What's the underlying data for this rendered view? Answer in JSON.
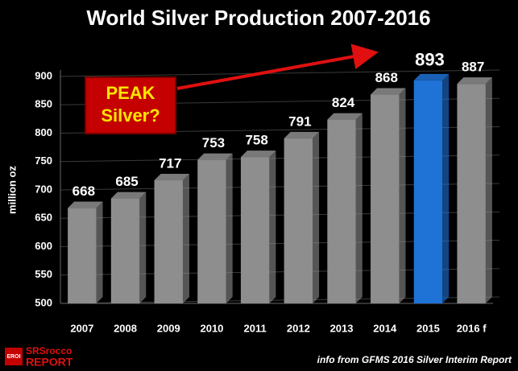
{
  "chart_data": {
    "type": "bar",
    "title": "World Silver Production 2007-2016",
    "categories": [
      "2007",
      "2008",
      "2009",
      "2010",
      "2011",
      "2012",
      "2013",
      "2014",
      "2015",
      "2016 f"
    ],
    "values": [
      668,
      685,
      717,
      753,
      758,
      791,
      824,
      868,
      893,
      887
    ],
    "colors": [
      "#8e8e8e",
      "#8e8e8e",
      "#8e8e8e",
      "#8e8e8e",
      "#8e8e8e",
      "#8e8e8e",
      "#8e8e8e",
      "#8e8e8e",
      "#1f72d6",
      "#8e8e8e"
    ],
    "ylabel": "million oz",
    "ylim": [
      500,
      900
    ],
    "yticks": [
      500,
      550,
      600,
      650,
      700,
      750,
      800,
      850,
      900
    ],
    "grid": true,
    "annotation": [
      "PEAK",
      "Silver?"
    ],
    "source": "info from GFMS 2016 Silver Interim Report",
    "logo": [
      "EROI",
      "SRSrocco",
      "REPORT"
    ]
  }
}
